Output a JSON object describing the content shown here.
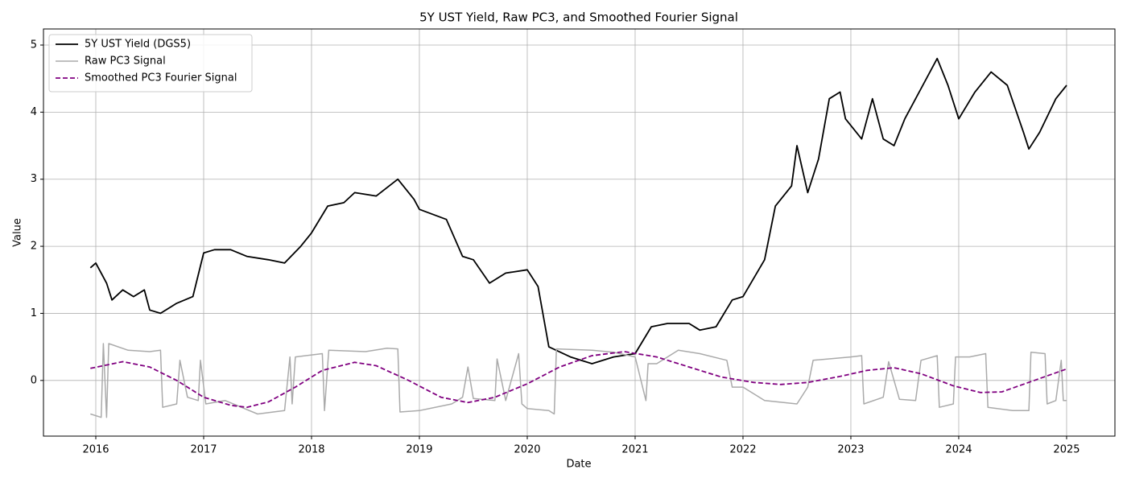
{
  "chart_data": {
    "type": "line",
    "title": "5Y UST Yield, Raw PC3, and Smoothed Fourier Signal",
    "x_label": "Date",
    "y_label": "Value",
    "xlim": [
      2015.515,
      2025.448
    ],
    "ylim": [
      -0.83,
      5.24
    ],
    "xticks": [
      2016,
      2017,
      2018,
      2019,
      2020,
      2021,
      2022,
      2023,
      2024,
      2025
    ],
    "yticks": [
      0,
      1,
      2,
      3,
      4,
      5
    ],
    "grid": true,
    "legend": "upper left",
    "series": [
      {
        "name": "5Y UST Yield (DGS5)",
        "color": "#000000",
        "linestyle": "solid",
        "linewidth": 1.8,
        "x": [
          2015.95,
          2016.0,
          2016.1,
          2016.15,
          2016.25,
          2016.35,
          2016.45,
          2016.5,
          2016.6,
          2016.75,
          2016.9,
          2017.0,
          2017.1,
          2017.25,
          2017.4,
          2017.6,
          2017.75,
          2017.9,
          2018.0,
          2018.15,
          2018.3,
          2018.4,
          2018.6,
          2018.8,
          2018.95,
          2019.0,
          2019.25,
          2019.4,
          2019.5,
          2019.65,
          2019.8,
          2020.0,
          2020.1,
          2020.2,
          2020.4,
          2020.6,
          2020.8,
          2021.0,
          2021.15,
          2021.3,
          2021.5,
          2021.6,
          2021.75,
          2021.9,
          2022.0,
          2022.2,
          2022.3,
          2022.45,
          2022.5,
          2022.6,
          2022.7,
          2022.8,
          2022.9,
          2022.95,
          2023.1,
          2023.2,
          2023.3,
          2023.4,
          2023.5,
          2023.6,
          2023.8,
          2023.9,
          2024.0,
          2024.15,
          2024.3,
          2024.45,
          2024.6,
          2024.65,
          2024.75,
          2024.9,
          2025.0
        ],
        "values": [
          1.68,
          1.75,
          1.45,
          1.2,
          1.35,
          1.25,
          1.35,
          1.05,
          1.0,
          1.15,
          1.25,
          1.9,
          1.95,
          1.95,
          1.85,
          1.8,
          1.75,
          2.0,
          2.2,
          2.6,
          2.65,
          2.8,
          2.75,
          3.0,
          2.7,
          2.55,
          2.4,
          1.85,
          1.8,
          1.45,
          1.6,
          1.65,
          1.4,
          0.5,
          0.35,
          0.25,
          0.35,
          0.4,
          0.8,
          0.85,
          0.85,
          0.75,
          0.8,
          1.2,
          1.25,
          1.8,
          2.6,
          2.9,
          3.5,
          2.8,
          3.3,
          4.2,
          4.3,
          3.9,
          3.6,
          4.2,
          3.6,
          3.5,
          3.9,
          4.2,
          4.8,
          4.4,
          3.9,
          4.3,
          4.6,
          4.4,
          3.7,
          3.45,
          3.7,
          4.2,
          4.4
        ]
      },
      {
        "name": "Raw PC3 Signal",
        "color": "#aaaaaa",
        "linestyle": "solid",
        "linewidth": 1.5,
        "x": [
          2015.95,
          2016.05,
          2016.07,
          2016.1,
          2016.12,
          2016.3,
          2016.5,
          2016.6,
          2016.62,
          2016.75,
          2016.78,
          2016.85,
          2016.95,
          2016.97,
          2017.02,
          2017.2,
          2017.35,
          2017.5,
          2017.75,
          2017.8,
          2017.82,
          2017.85,
          2018.1,
          2018.12,
          2018.16,
          2018.5,
          2018.7,
          2018.8,
          2018.82,
          2019.0,
          2019.3,
          2019.4,
          2019.45,
          2019.5,
          2019.7,
          2019.72,
          2019.8,
          2019.92,
          2019.95,
          2020.0,
          2020.2,
          2020.25,
          2020.27,
          2020.6,
          2020.8,
          2021.0,
          2021.1,
          2021.12,
          2021.2,
          2021.4,
          2021.6,
          2021.85,
          2021.9,
          2022.0,
          2022.2,
          2022.5,
          2022.6,
          2022.65,
          2023.0,
          2023.1,
          2023.12,
          2023.3,
          2023.35,
          2023.45,
          2023.6,
          2023.65,
          2023.8,
          2023.82,
          2023.95,
          2023.97,
          2024.1,
          2024.25,
          2024.27,
          2024.5,
          2024.65,
          2024.67,
          2024.8,
          2024.82,
          2024.9,
          2024.95,
          2024.97,
          2025.0
        ],
        "values": [
          -0.5,
          -0.55,
          0.55,
          -0.55,
          0.55,
          0.45,
          0.43,
          0.45,
          -0.4,
          -0.35,
          0.3,
          -0.25,
          -0.3,
          0.3,
          -0.35,
          -0.3,
          -0.4,
          -0.5,
          -0.45,
          0.35,
          -0.35,
          0.35,
          0.4,
          -0.45,
          0.45,
          0.43,
          0.48,
          0.47,
          -0.47,
          -0.45,
          -0.35,
          -0.25,
          0.2,
          -0.27,
          -0.3,
          0.32,
          -0.3,
          0.4,
          -0.35,
          -0.42,
          -0.45,
          -0.5,
          0.47,
          0.45,
          0.42,
          0.35,
          -0.3,
          0.25,
          0.25,
          0.45,
          0.4,
          0.3,
          -0.1,
          -0.1,
          -0.3,
          -0.35,
          -0.1,
          0.3,
          0.35,
          0.37,
          -0.35,
          -0.25,
          0.28,
          -0.28,
          -0.3,
          0.3,
          0.37,
          -0.4,
          -0.35,
          0.35,
          0.35,
          0.4,
          -0.4,
          -0.45,
          -0.45,
          0.42,
          0.4,
          -0.35,
          -0.3,
          0.3,
          -0.3,
          -0.3
        ]
      },
      {
        "name": "Smoothed PC3 Fourier Signal",
        "color": "#800080",
        "linestyle": "dashed",
        "linewidth": 1.8,
        "x": [
          2015.95,
          2016.25,
          2016.5,
          2016.75,
          2017.0,
          2017.25,
          2017.4,
          2017.6,
          2017.85,
          2018.1,
          2018.4,
          2018.6,
          2018.9,
          2019.2,
          2019.45,
          2019.7,
          2020.0,
          2020.3,
          2020.6,
          2020.9,
          2021.2,
          2021.5,
          2021.8,
          2022.1,
          2022.35,
          2022.6,
          2022.9,
          2023.15,
          2023.4,
          2023.65,
          2023.95,
          2024.2,
          2024.4,
          2024.7,
          2025.0
        ],
        "values": [
          0.18,
          0.28,
          0.2,
          0.0,
          -0.25,
          -0.37,
          -0.4,
          -0.32,
          -0.1,
          0.15,
          0.27,
          0.22,
          0.0,
          -0.25,
          -0.33,
          -0.25,
          -0.05,
          0.2,
          0.37,
          0.43,
          0.35,
          0.2,
          0.05,
          -0.03,
          -0.06,
          -0.03,
          0.06,
          0.15,
          0.19,
          0.1,
          -0.08,
          -0.18,
          -0.17,
          0.0,
          0.17
        ]
      }
    ]
  }
}
